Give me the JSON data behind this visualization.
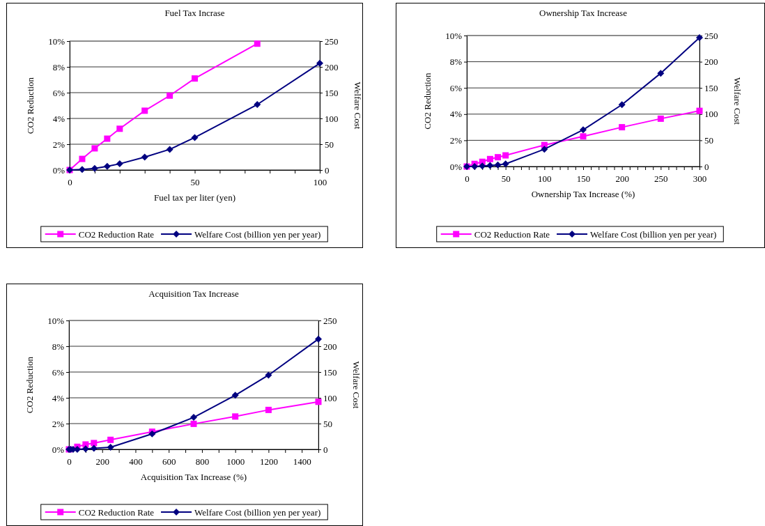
{
  "chart_data": [
    {
      "type": "line",
      "title": "Fuel Tax  Incrase",
      "xlabel": "Fuel tax per liter (yen)",
      "ylabel": "CO2 Reduction",
      "y2label": "Welfare Cost",
      "x": [
        0,
        5,
        10,
        15,
        20,
        30,
        40,
        50,
        75,
        100
      ],
      "series": [
        {
          "name": "CO2 Reduction Rate",
          "color": "#ff00ff",
          "marker": "square",
          "values": [
            0,
            0.86,
            1.68,
            2.43,
            3.2,
            4.6,
            5.77,
            7.1,
            9.8,
            null
          ]
        },
        {
          "name": "Welfare Cost (billion yen per year)",
          "color": "#000080",
          "marker": "diamond",
          "axis": "y2",
          "values": [
            0,
            1,
            3,
            7,
            12,
            25,
            40,
            63,
            127,
            207
          ]
        }
      ],
      "xlim": [
        0,
        100
      ],
      "xticks": [
        0,
        {
          "value": 10,
          "label": null
        },
        {
          "value": 20,
          "label": null
        },
        {
          "value": 30,
          "label": null
        },
        {
          "value": 40,
          "label": null
        },
        50,
        {
          "value": 60,
          "label": null
        },
        {
          "value": 70,
          "label": null
        },
        {
          "value": 80,
          "label": null
        },
        {
          "value": 90,
          "label": null
        },
        100
      ],
      "ylim": [
        0,
        10
      ],
      "yticks": [
        {
          "value": 0,
          "label": "0%"
        },
        {
          "value": 2,
          "label": "2%"
        },
        {
          "value": 4,
          "label": "4%"
        },
        {
          "value": 6,
          "label": "6%"
        },
        {
          "value": 8,
          "label": "8%"
        },
        {
          "value": 10,
          "label": "10%"
        }
      ],
      "y2lim": [
        0,
        250
      ],
      "y2ticks": [
        0,
        50,
        100,
        150,
        200,
        250
      ],
      "grid": "y",
      "legend": "bottom"
    },
    {
      "type": "line",
      "title": "Ownership Tax Increase",
      "xlabel": "Ownership Tax Increase (%)",
      "ylabel": "CO2 Reduction",
      "y2label": "Welfare Cost",
      "x": [
        0,
        10,
        20,
        30,
        40,
        50,
        100,
        150,
        200,
        250,
        300
      ],
      "series": [
        {
          "name": "CO2 Reduction Rate",
          "color": "#ff00ff",
          "marker": "square",
          "values": [
            0,
            0.2,
            0.36,
            0.57,
            0.71,
            0.85,
            1.64,
            2.3,
            3.0,
            3.65,
            4.25
          ]
        },
        {
          "name": "Welfare Cost (billion yen per year)",
          "color": "#000080",
          "marker": "diamond",
          "axis": "y2",
          "values": [
            0,
            0,
            1,
            2,
            3,
            5,
            33,
            70,
            118,
            178,
            246
          ]
        }
      ],
      "xlim": [
        0,
        300
      ],
      "xticks": [
        0,
        {
          "value": 10,
          "label": null
        },
        {
          "value": 20,
          "label": null
        },
        {
          "value": 30,
          "label": null
        },
        {
          "value": 40,
          "label": null
        },
        50,
        {
          "value": 60,
          "label": null
        },
        {
          "value": 70,
          "label": null
        },
        {
          "value": 80,
          "label": null
        },
        {
          "value": 90,
          "label": null
        },
        100,
        {
          "value": 110,
          "label": null
        },
        {
          "value": 120,
          "label": null
        },
        {
          "value": 130,
          "label": null
        },
        {
          "value": 140,
          "label": null
        },
        150,
        {
          "value": 160,
          "label": null
        },
        {
          "value": 170,
          "label": null
        },
        {
          "value": 180,
          "label": null
        },
        {
          "value": 190,
          "label": null
        },
        200,
        {
          "value": 210,
          "label": null
        },
        {
          "value": 220,
          "label": null
        },
        {
          "value": 230,
          "label": null
        },
        {
          "value": 240,
          "label": null
        },
        250,
        {
          "value": 260,
          "label": null
        },
        {
          "value": 270,
          "label": null
        },
        {
          "value": 280,
          "label": null
        },
        {
          "value": 290,
          "label": null
        },
        300
      ],
      "ylim": [
        0,
        10
      ],
      "yticks": [
        {
          "value": 0,
          "label": "0%"
        },
        {
          "value": 2,
          "label": "2%"
        },
        {
          "value": 4,
          "label": "4%"
        },
        {
          "value": 6,
          "label": "6%"
        },
        {
          "value": 8,
          "label": "8%"
        },
        {
          "value": 10,
          "label": "10%"
        }
      ],
      "y2lim": [
        0,
        250
      ],
      "y2ticks": [
        0,
        50,
        100,
        150,
        200,
        250
      ],
      "grid": "y",
      "legend": "bottom"
    },
    {
      "type": "line",
      "title": "Acquisition Tax Increase",
      "xlabel": "Acquisition Tax Increase (%)",
      "ylabel": "CO2 Reduction",
      "y2label": "Welfare Cost",
      "x": [
        0,
        10,
        25,
        50,
        100,
        150,
        250,
        500,
        750,
        1000,
        1200,
        1500
      ],
      "series": [
        {
          "name": "CO2 Reduction Rate",
          "color": "#ff00ff",
          "marker": "square",
          "values": [
            0,
            null,
            null,
            0.2,
            0.38,
            0.49,
            0.74,
            1.37,
            1.98,
            2.55,
            3.06,
            3.69
          ]
        },
        {
          "name": "Welfare Cost (billion yen per year)",
          "color": "#000080",
          "marker": "diamond",
          "axis": "y2",
          "values": [
            0,
            0,
            0,
            0,
            1,
            2,
            4,
            30,
            62,
            105,
            144,
            214
          ]
        }
      ],
      "xlim": [
        0,
        1500
      ],
      "xticks": [
        0,
        {
          "value": 100,
          "label": null
        },
        200,
        {
          "value": 300,
          "label": null
        },
        400,
        {
          "value": 500,
          "label": null
        },
        600,
        {
          "value": 700,
          "label": null
        },
        800,
        {
          "value": 900,
          "label": null
        },
        1000,
        {
          "value": 1100,
          "label": null
        },
        1200,
        {
          "value": 1300,
          "label": null
        },
        1400,
        {
          "value": 1500,
          "label": null
        }
      ],
      "ylim": [
        0,
        10
      ],
      "yticks": [
        {
          "value": 0,
          "label": "0%"
        },
        {
          "value": 2,
          "label": "2%"
        },
        {
          "value": 4,
          "label": "4%"
        },
        {
          "value": 6,
          "label": "6%"
        },
        {
          "value": 8,
          "label": "8%"
        },
        {
          "value": 10,
          "label": "10%"
        }
      ],
      "y2lim": [
        0,
        250
      ],
      "y2ticks": [
        0,
        50,
        100,
        150,
        200,
        250
      ],
      "grid": "y",
      "legend": "bottom"
    }
  ]
}
